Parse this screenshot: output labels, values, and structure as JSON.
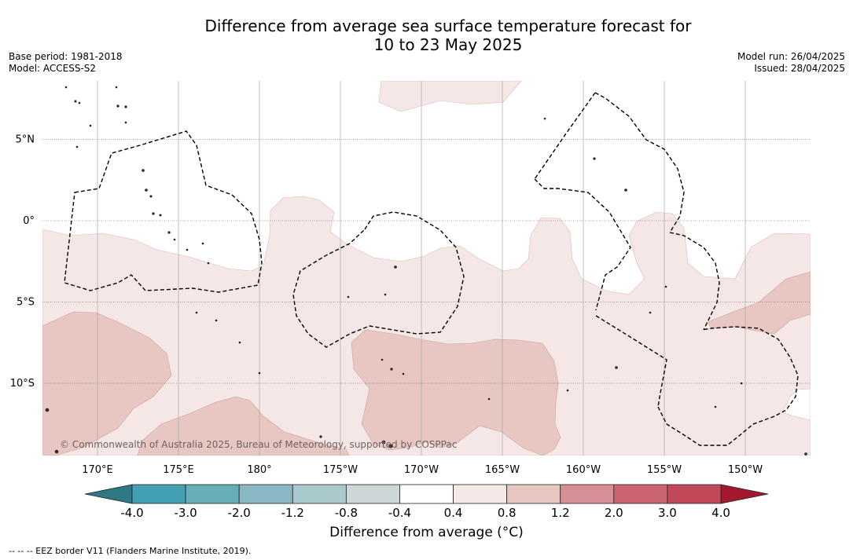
{
  "title": {
    "line1": "Difference from average sea surface temperature forecast for",
    "line2": "10 to 23 May 2025"
  },
  "meta_left": {
    "base_period": "Base period: 1981-2018",
    "model": "Model: ACCESS-S2"
  },
  "meta_right": {
    "model_run": "Model run: 26/04/2025",
    "issued": "Issued: 28/04/2025"
  },
  "map": {
    "lat_labels": [
      "5°N",
      "0°",
      "5°S",
      "10°S"
    ],
    "lat_values": [
      5,
      0,
      -5,
      -10
    ],
    "lon_labels": [
      "170°E",
      "175°E",
      "180°",
      "175°W",
      "170°W",
      "165°W",
      "160°W",
      "155°W",
      "150°W"
    ],
    "lon_values": [
      170,
      175,
      180,
      -175,
      -170,
      -165,
      -160,
      -155,
      -150
    ],
    "copyright": "© Commonwealth of Australia 2025, Bureau of Meteorology, supported by COSPPac"
  },
  "colorbar": {
    "label": "Difference from average (°C)",
    "ticks": [
      "-4.0",
      "-3.0",
      "-2.0",
      "-1.2",
      "-0.8",
      "-0.4",
      "0.4",
      "0.8",
      "1.2",
      "2.0",
      "3.0",
      "4.0"
    ],
    "under_color": "#2e7a84",
    "over_color": "#a3182f",
    "colors": [
      "#43a0b2",
      "#67aebb",
      "#8ab8c2",
      "#a9c9cc",
      "#cdd7d7",
      "#ffffff",
      "#f6e8e6",
      "#e8c6c2",
      "#d78f96",
      "#c96470",
      "#c04a5a"
    ]
  },
  "footnote": "--  --  -- EEZ border V11 (Flanders Marine Institute, 2019)."
}
